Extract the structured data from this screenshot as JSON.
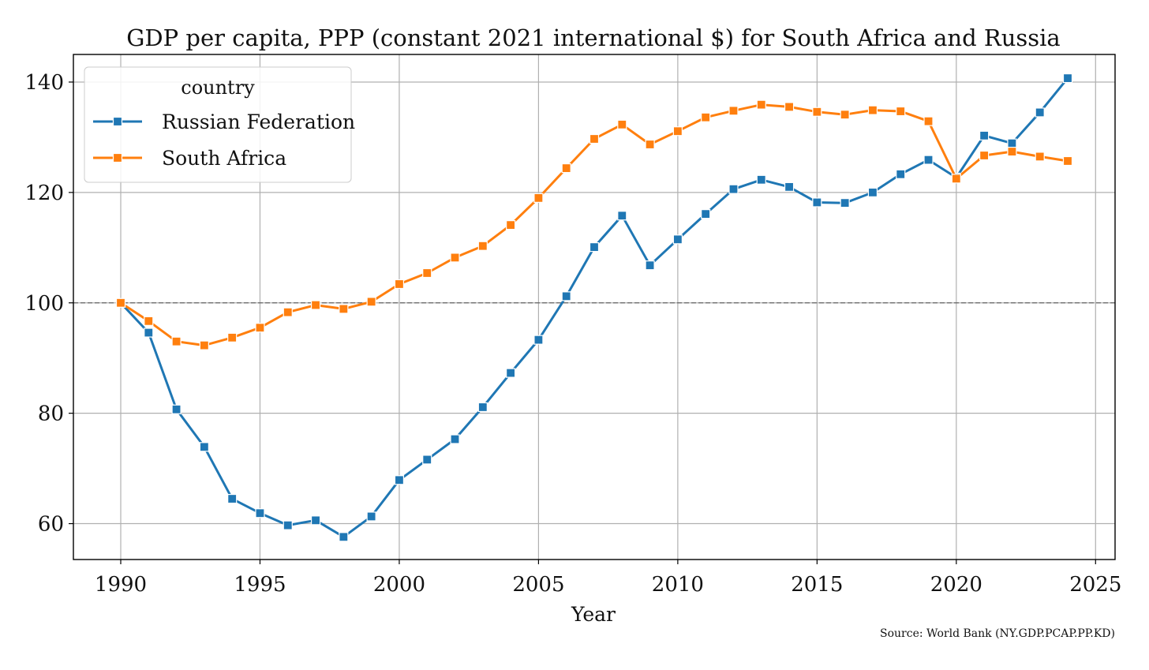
{
  "chart_data": {
    "type": "line",
    "title": "GDP per capita, PPP (constant 2021 international $) for South Africa and Russia",
    "xlabel": "Year",
    "ylabel": "",
    "xlim": [
      1988.3,
      2025.7
    ],
    "ylim": [
      53.5,
      145
    ],
    "x_ticks": [
      1990,
      1995,
      2000,
      2005,
      2010,
      2015,
      2020,
      2025
    ],
    "x_tick_labels": [
      "1990",
      "1995",
      "2000",
      "2005",
      "2010",
      "2015",
      "2020",
      "2025"
    ],
    "y_ticks": [
      60,
      80,
      100,
      120,
      140
    ],
    "y_tick_labels": [
      "60",
      "80",
      "100",
      "120",
      "140"
    ],
    "grid": true,
    "reference_line": {
      "y": 100,
      "style": "dashed"
    },
    "legend": {
      "title": "country",
      "placement": "top-left"
    },
    "x": [
      1990,
      1991,
      1992,
      1993,
      1994,
      1995,
      1996,
      1997,
      1998,
      1999,
      2000,
      2001,
      2002,
      2003,
      2004,
      2005,
      2006,
      2007,
      2008,
      2009,
      2010,
      2011,
      2012,
      2013,
      2014,
      2015,
      2016,
      2017,
      2018,
      2019,
      2020,
      2021,
      2022,
      2023,
      2024
    ],
    "series": [
      {
        "name": "Russian Federation",
        "color": "#1f77b4",
        "values": [
          100,
          94.6,
          80.7,
          73.9,
          64.5,
          61.9,
          59.7,
          60.6,
          57.6,
          61.3,
          67.9,
          71.6,
          75.3,
          81.1,
          87.3,
          93.3,
          101.2,
          110.1,
          115.8,
          106.8,
          111.5,
          116.1,
          120.6,
          122.3,
          121.0,
          118.2,
          118.1,
          120.0,
          123.3,
          125.9,
          122.7,
          130.3,
          128.9,
          134.5,
          140.7
        ]
      },
      {
        "name": "South Africa",
        "color": "#ff7f0e",
        "values": [
          100,
          96.7,
          93.0,
          92.3,
          93.7,
          95.5,
          98.3,
          99.6,
          98.9,
          100.2,
          103.4,
          105.4,
          108.2,
          110.3,
          114.1,
          119.0,
          124.4,
          129.7,
          132.3,
          128.7,
          131.1,
          133.6,
          134.8,
          135.9,
          135.5,
          134.6,
          134.1,
          134.9,
          134.7,
          132.9,
          122.5,
          126.7,
          127.4,
          126.5,
          125.7
        ]
      }
    ]
  },
  "source_note": "Source: World Bank (NY.GDP.PCAP.PP.KD)"
}
